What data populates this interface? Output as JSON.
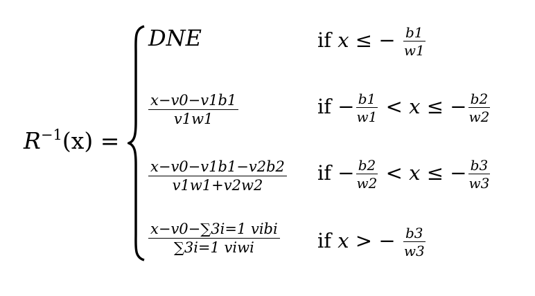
{
  "lhs": {
    "func": "R",
    "exp": "−1",
    "arg": "(x)",
    "eq": "="
  },
  "cases": [
    {
      "expr": "DNE",
      "cond_if": "if",
      "cond_text": "x ≤ −",
      "cond_num": "b1",
      "cond_den": "w1"
    },
    {
      "expr_num": "x−v0−v1b1",
      "expr_den": "v1w1",
      "cond_if": "if",
      "cond_pre": "−",
      "cond_num1": "b1",
      "cond_den1": "w1",
      "cond_mid": "< x ≤ −",
      "cond_num2": "b2",
      "cond_den2": "w2"
    },
    {
      "expr_num": "x−v0−v1b1−v2b2",
      "expr_den": "v1w1+v2w2",
      "cond_if": "if",
      "cond_pre": "−",
      "cond_num1": "b2",
      "cond_den1": "w2",
      "cond_mid": "< x ≤ −",
      "cond_num2": "b3",
      "cond_den2": "w3"
    },
    {
      "expr_num": "x−v0−∑3i=1 vibi",
      "expr_den": "∑3i=1 viwi",
      "cond_if": "if",
      "cond_text": "x > −",
      "cond_num": "b3",
      "cond_den": "w3"
    }
  ]
}
